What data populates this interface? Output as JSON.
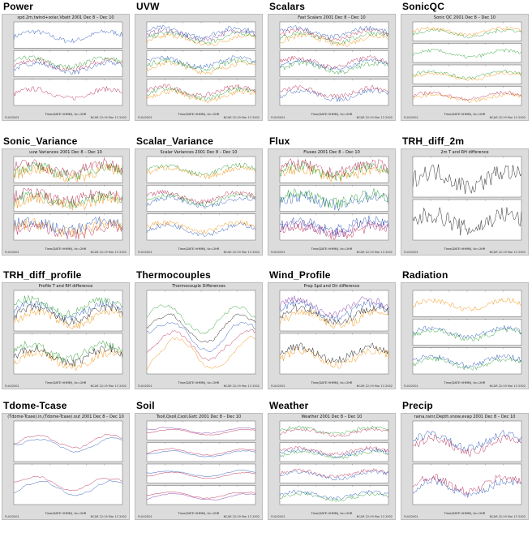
{
  "colors": {
    "panel_bg": "#dcdcdc",
    "plot_bg": "#ffffff",
    "blue": "#1f4fb4",
    "red": "#b4204a",
    "green": "#1f9a2a",
    "orange": "#f08a00",
    "purple": "#7a2fa0",
    "black": "#111111"
  },
  "cells": [
    {
      "label": "Power",
      "title": "spd.2m,twind+solar,Vbatt 2001 Dec 8 – Dec 10",
      "panels": 3,
      "style": "power"
    },
    {
      "label": "UVW",
      "title": "",
      "panels": 3,
      "style": "uvw"
    },
    {
      "label": "Scalars",
      "title": "Fast Scalars 2001 Dec 8 – Dec 10",
      "panels": 3,
      "style": "scalars"
    },
    {
      "label": "SonicQC",
      "title": "Sonic QC 2001 Dec 8 – Dec 10",
      "panels": 4,
      "style": "sonicqc"
    },
    {
      "label": "Sonic_Variance",
      "title": "uvw Variances 2001 Dec 8 – Dec 10",
      "panels": 3,
      "style": "sonicvar"
    },
    {
      "label": "Scalar_Variance",
      "title": "Scalar Variances 2001 Dec 8 – Dec 10",
      "panels": 3,
      "style": "scalarvar"
    },
    {
      "label": "Flux",
      "title": "Fluxes 2001 Dec 8 – Dec 10",
      "panels": 3,
      "style": "flux"
    },
    {
      "label": "TRH_diff_2m",
      "title": "2m T and RH difference",
      "panels": 2,
      "style": "trh2m"
    },
    {
      "label": "TRH_diff_profile",
      "title": "Profile T and RH difference",
      "panels": 2,
      "style": "trhprof"
    },
    {
      "label": "Thermocouples",
      "title": "Thermocouple Differences",
      "panels": 1,
      "style": "thermo"
    },
    {
      "label": "Wind_Profile",
      "title": "Prop Spd and Dir difference",
      "panels": 2,
      "style": "windprof"
    },
    {
      "label": "Radiation",
      "title": "",
      "panels": 3,
      "style": "radiation"
    },
    {
      "label": "Tdome-Tcase",
      "title": "(Tdome-Tcase).in,(Tdome-Tcase).out 2001 Dec 8 – Dec 10",
      "panels": 2,
      "style": "tdome"
    },
    {
      "label": "Soil",
      "title": "Tsoil,Qsoil,Csoil,Gsfc 2001 Dec 8 – Dec 10",
      "panels": 4,
      "style": "soil"
    },
    {
      "label": "Weather",
      "title": "Weather 2001 Dec 8 – Dec 10",
      "panels": 4,
      "style": "weather"
    },
    {
      "label": "Precip",
      "title": "raina,rainr,Depth.snow,evap 2001 Dec 8 – Dec 10",
      "panels": 2,
      "style": "precip"
    }
  ],
  "xlabel": "Time(DATE HHMM), tic=2HR",
  "foot_left": "FLUX2001",
  "foot_right": "NCAR 22:19 Mar 13 2002"
}
